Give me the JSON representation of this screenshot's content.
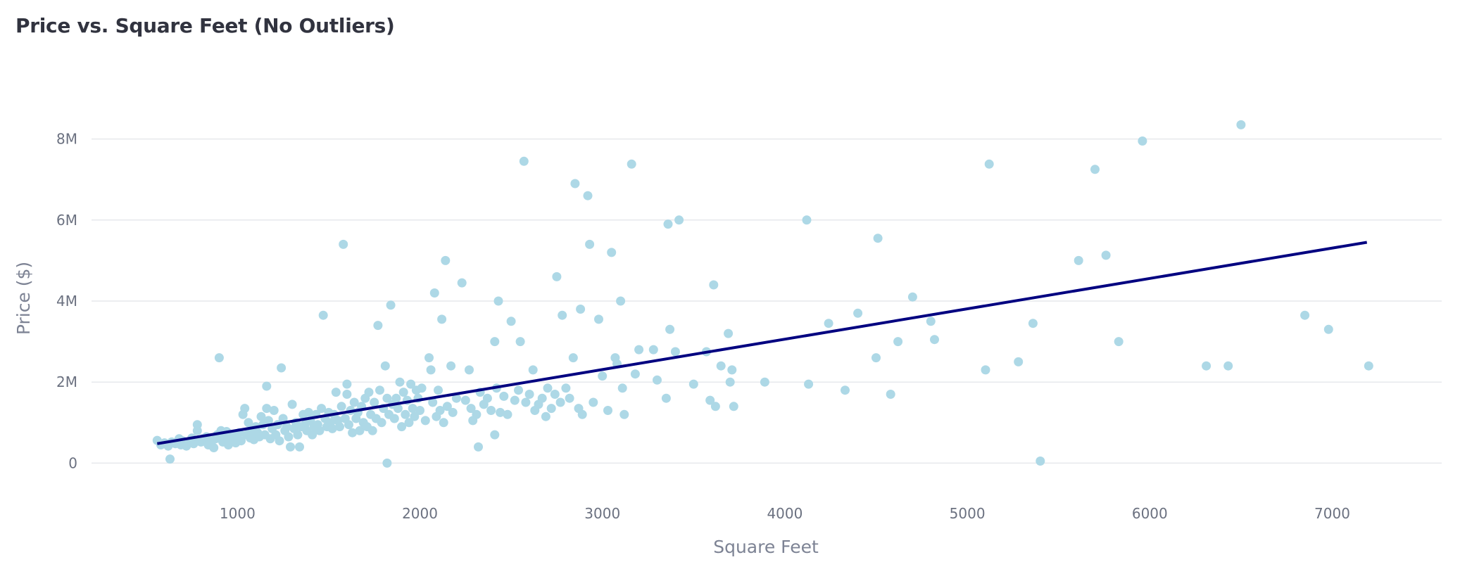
{
  "chart_data": {
    "type": "scatter",
    "title": "Price vs. Square Feet (No Outliers)",
    "xlabel": "Square Feet",
    "ylabel": "Price ($)",
    "xlim": [
      200,
      7600
    ],
    "ylim": [
      -1000000,
      9000000
    ],
    "x_ticks": [
      {
        "value": 1000,
        "label": "1000"
      },
      {
        "value": 2000,
        "label": "2000"
      },
      {
        "value": 3000,
        "label": "3000"
      },
      {
        "value": 4000,
        "label": "4000"
      },
      {
        "value": 5000,
        "label": "5000"
      },
      {
        "value": 6000,
        "label": "6000"
      },
      {
        "value": 7000,
        "label": "7000"
      }
    ],
    "y_ticks": [
      {
        "value": 0,
        "label": "0"
      },
      {
        "value": 2000000,
        "label": "2M"
      },
      {
        "value": 4000000,
        "label": "4M"
      },
      {
        "value": 6000000,
        "label": "6M"
      },
      {
        "value": 8000000,
        "label": "8M"
      }
    ],
    "grid": true,
    "legend": "none",
    "point_color": "#add8e6",
    "trendline": {
      "color": "#000080",
      "points": [
        [
          560,
          480000
        ],
        [
          7190,
          5450000
        ]
      ]
    },
    "points": [
      [
        560,
        560000
      ],
      [
        580,
        450000
      ],
      [
        600,
        500000
      ],
      [
        620,
        420000
      ],
      [
        630,
        100000
      ],
      [
        640,
        520000
      ],
      [
        660,
        480000
      ],
      [
        680,
        600000
      ],
      [
        690,
        450000
      ],
      [
        700,
        550000
      ],
      [
        720,
        420000
      ],
      [
        730,
        500000
      ],
      [
        750,
        620000
      ],
      [
        760,
        480000
      ],
      [
        780,
        950000
      ],
      [
        780,
        800000
      ],
      [
        790,
        550000
      ],
      [
        800,
        520000
      ],
      [
        810,
        600000
      ],
      [
        830,
        650000
      ],
      [
        840,
        450000
      ],
      [
        850,
        480000
      ],
      [
        860,
        550000
      ],
      [
        870,
        380000
      ],
      [
        880,
        600000
      ],
      [
        890,
        700000
      ],
      [
        900,
        650000
      ],
      [
        900,
        2600000
      ],
      [
        910,
        800000
      ],
      [
        920,
        520000
      ],
      [
        930,
        600000
      ],
      [
        940,
        780000
      ],
      [
        950,
        450000
      ],
      [
        960,
        700000
      ],
      [
        970,
        550000
      ],
      [
        980,
        650000
      ],
      [
        990,
        500000
      ],
      [
        1000,
        600000
      ],
      [
        1010,
        750000
      ],
      [
        1020,
        550000
      ],
      [
        1030,
        1200000
      ],
      [
        1040,
        1350000
      ],
      [
        1050,
        700000
      ],
      [
        1060,
        1000000
      ],
      [
        1070,
        620000
      ],
      [
        1080,
        800000
      ],
      [
        1090,
        580000
      ],
      [
        1100,
        900000
      ],
      [
        1110,
        750000
      ],
      [
        1120,
        650000
      ],
      [
        1130,
        1150000
      ],
      [
        1140,
        950000
      ],
      [
        1150,
        700000
      ],
      [
        1160,
        1900000
      ],
      [
        1160,
        1350000
      ],
      [
        1170,
        1050000
      ],
      [
        1180,
        600000
      ],
      [
        1190,
        850000
      ],
      [
        1200,
        1300000
      ],
      [
        1210,
        700000
      ],
      [
        1220,
        950000
      ],
      [
        1230,
        550000
      ],
      [
        1240,
        2350000
      ],
      [
        1250,
        1100000
      ],
      [
        1260,
        800000
      ],
      [
        1270,
        900000
      ],
      [
        1280,
        650000
      ],
      [
        1290,
        400000
      ],
      [
        1300,
        1450000
      ],
      [
        1310,
        850000
      ],
      [
        1320,
        1000000
      ],
      [
        1330,
        700000
      ],
      [
        1340,
        400000
      ],
      [
        1350,
        900000
      ],
      [
        1360,
        1200000
      ],
      [
        1370,
        950000
      ],
      [
        1380,
        800000
      ],
      [
        1390,
        1250000
      ],
      [
        1400,
        1050000
      ],
      [
        1410,
        700000
      ],
      [
        1420,
        900000
      ],
      [
        1430,
        1200000
      ],
      [
        1440,
        950000
      ],
      [
        1450,
        800000
      ],
      [
        1460,
        1350000
      ],
      [
        1470,
        3650000
      ],
      [
        1480,
        1100000
      ],
      [
        1490,
        900000
      ],
      [
        1500,
        1250000
      ],
      [
        1510,
        1000000
      ],
      [
        1520,
        850000
      ],
      [
        1530,
        1200000
      ],
      [
        1540,
        1750000
      ],
      [
        1550,
        1050000
      ],
      [
        1560,
        900000
      ],
      [
        1570,
        1400000
      ],
      [
        1580,
        5400000
      ],
      [
        1590,
        1100000
      ],
      [
        1600,
        1700000
      ],
      [
        1600,
        1950000
      ],
      [
        1610,
        950000
      ],
      [
        1620,
        1300000
      ],
      [
        1630,
        750000
      ],
      [
        1640,
        1500000
      ],
      [
        1650,
        1100000
      ],
      [
        1660,
        1250000
      ],
      [
        1670,
        800000
      ],
      [
        1680,
        1400000
      ],
      [
        1690,
        1000000
      ],
      [
        1700,
        1600000
      ],
      [
        1710,
        900000
      ],
      [
        1720,
        1750000
      ],
      [
        1730,
        1200000
      ],
      [
        1740,
        800000
      ],
      [
        1750,
        1500000
      ],
      [
        1760,
        1100000
      ],
      [
        1770,
        3400000
      ],
      [
        1780,
        1800000
      ],
      [
        1790,
        1000000
      ],
      [
        1800,
        1350000
      ],
      [
        1810,
        2400000
      ],
      [
        1820,
        1600000
      ],
      [
        1820,
        0
      ],
      [
        1830,
        1200000
      ],
      [
        1840,
        3900000
      ],
      [
        1850,
        1450000
      ],
      [
        1860,
        1100000
      ],
      [
        1870,
        1600000
      ],
      [
        1880,
        1350000
      ],
      [
        1890,
        2000000
      ],
      [
        1900,
        900000
      ],
      [
        1910,
        1750000
      ],
      [
        1920,
        1200000
      ],
      [
        1930,
        1550000
      ],
      [
        1940,
        1000000
      ],
      [
        1950,
        1950000
      ],
      [
        1960,
        1350000
      ],
      [
        1970,
        1150000
      ],
      [
        1980,
        1800000
      ],
      [
        1990,
        1600000
      ],
      [
        2000,
        1300000
      ],
      [
        2010,
        1850000
      ],
      [
        2030,
        1050000
      ],
      [
        2050,
        2600000
      ],
      [
        2060,
        2300000
      ],
      [
        2070,
        1500000
      ],
      [
        2080,
        4200000
      ],
      [
        2090,
        1150000
      ],
      [
        2100,
        1800000
      ],
      [
        2110,
        1300000
      ],
      [
        2120,
        3550000
      ],
      [
        2130,
        1000000
      ],
      [
        2140,
        5000000
      ],
      [
        2150,
        1400000
      ],
      [
        2170,
        2400000
      ],
      [
        2180,
        1250000
      ],
      [
        2200,
        1600000
      ],
      [
        2230,
        4450000
      ],
      [
        2250,
        1550000
      ],
      [
        2270,
        2300000
      ],
      [
        2280,
        1350000
      ],
      [
        2290,
        1050000
      ],
      [
        2310,
        1200000
      ],
      [
        2320,
        400000
      ],
      [
        2330,
        1750000
      ],
      [
        2350,
        1450000
      ],
      [
        2370,
        1600000
      ],
      [
        2390,
        1300000
      ],
      [
        2410,
        3000000
      ],
      [
        2410,
        700000
      ],
      [
        2420,
        1850000
      ],
      [
        2430,
        4000000
      ],
      [
        2440,
        1250000
      ],
      [
        2460,
        1650000
      ],
      [
        2480,
        1200000
      ],
      [
        2500,
        3500000
      ],
      [
        2520,
        1550000
      ],
      [
        2540,
        1800000
      ],
      [
        2550,
        3000000
      ],
      [
        2570,
        7450000
      ],
      [
        2580,
        1500000
      ],
      [
        2600,
        1700000
      ],
      [
        2620,
        2300000
      ],
      [
        2630,
        1300000
      ],
      [
        2650,
        1450000
      ],
      [
        2670,
        1600000
      ],
      [
        2690,
        1150000
      ],
      [
        2700,
        1850000
      ],
      [
        2720,
        1350000
      ],
      [
        2740,
        1700000
      ],
      [
        2750,
        4600000
      ],
      [
        2770,
        1500000
      ],
      [
        2780,
        3650000
      ],
      [
        2800,
        1850000
      ],
      [
        2820,
        1600000
      ],
      [
        2840,
        2600000
      ],
      [
        2850,
        6900000
      ],
      [
        2870,
        1350000
      ],
      [
        2880,
        3800000
      ],
      [
        2890,
        1200000
      ],
      [
        2920,
        6600000
      ],
      [
        2930,
        5400000
      ],
      [
        2950,
        1500000
      ],
      [
        2980,
        3550000
      ],
      [
        3000,
        2150000
      ],
      [
        3030,
        1300000
      ],
      [
        3050,
        5200000
      ],
      [
        3070,
        2600000
      ],
      [
        3080,
        2450000
      ],
      [
        3100,
        4000000
      ],
      [
        3110,
        1850000
      ],
      [
        3120,
        1200000
      ],
      [
        3160,
        7380000
      ],
      [
        3180,
        2200000
      ],
      [
        3200,
        2800000
      ],
      [
        3280,
        2800000
      ],
      [
        3300,
        2050000
      ],
      [
        3350,
        1600000
      ],
      [
        3360,
        5900000
      ],
      [
        3370,
        3300000
      ],
      [
        3400,
        2750000
      ],
      [
        3420,
        6000000
      ],
      [
        3500,
        1950000
      ],
      [
        3570,
        2750000
      ],
      [
        3590,
        1550000
      ],
      [
        3610,
        4400000
      ],
      [
        3620,
        1400000
      ],
      [
        3650,
        2400000
      ],
      [
        3690,
        3200000
      ],
      [
        3700,
        2000000
      ],
      [
        3710,
        2300000
      ],
      [
        3720,
        1400000
      ],
      [
        3890,
        2000000
      ],
      [
        4120,
        6000000
      ],
      [
        4130,
        1950000
      ],
      [
        4240,
        3450000
      ],
      [
        4330,
        1800000
      ],
      [
        4400,
        3700000
      ],
      [
        4500,
        2600000
      ],
      [
        4510,
        5550000
      ],
      [
        4580,
        1700000
      ],
      [
        4620,
        3000000
      ],
      [
        4700,
        4100000
      ],
      [
        4800,
        3500000
      ],
      [
        4820,
        3050000
      ],
      [
        5100,
        2300000
      ],
      [
        5120,
        7380000
      ],
      [
        5280,
        2500000
      ],
      [
        5360,
        3450000
      ],
      [
        5400,
        50000
      ],
      [
        5610,
        5000000
      ],
      [
        5700,
        7250000
      ],
      [
        5760,
        5130000
      ],
      [
        5830,
        3000000
      ],
      [
        5960,
        7950000
      ],
      [
        6310,
        2400000
      ],
      [
        6430,
        2400000
      ],
      [
        6500,
        8350000
      ],
      [
        6850,
        3650000
      ],
      [
        6980,
        3300000
      ],
      [
        7200,
        2400000
      ]
    ]
  }
}
